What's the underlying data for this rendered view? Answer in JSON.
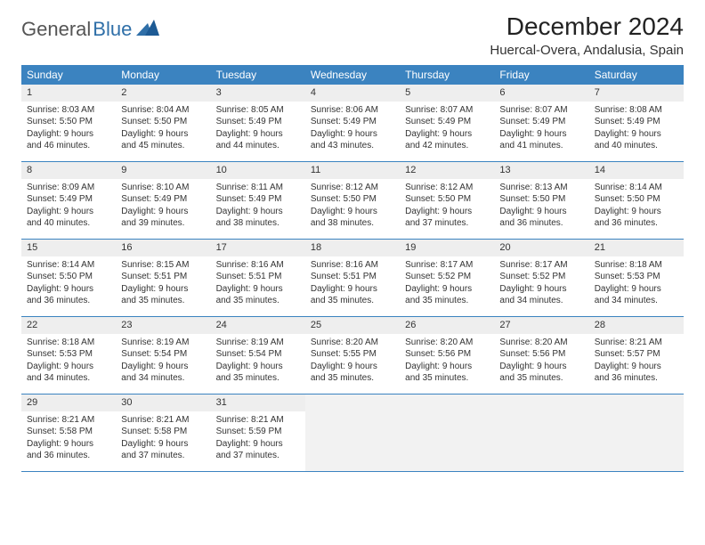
{
  "logo": {
    "text1": "General",
    "text2": "Blue"
  },
  "title": "December 2024",
  "location": "Huercal-Overa, Andalusia, Spain",
  "colors": {
    "header_bg": "#3b83c0",
    "header_text": "#ffffff",
    "daynum_bg": "#eeeeee",
    "border": "#3b83c0",
    "logo_gray": "#555555",
    "logo_blue": "#2f6fa8"
  },
  "day_labels": [
    "Sunday",
    "Monday",
    "Tuesday",
    "Wednesday",
    "Thursday",
    "Friday",
    "Saturday"
  ],
  "weeks": [
    [
      {
        "n": "1",
        "sr": "Sunrise: 8:03 AM",
        "ss": "Sunset: 5:50 PM",
        "d1": "Daylight: 9 hours",
        "d2": "and 46 minutes."
      },
      {
        "n": "2",
        "sr": "Sunrise: 8:04 AM",
        "ss": "Sunset: 5:50 PM",
        "d1": "Daylight: 9 hours",
        "d2": "and 45 minutes."
      },
      {
        "n": "3",
        "sr": "Sunrise: 8:05 AM",
        "ss": "Sunset: 5:49 PM",
        "d1": "Daylight: 9 hours",
        "d2": "and 44 minutes."
      },
      {
        "n": "4",
        "sr": "Sunrise: 8:06 AM",
        "ss": "Sunset: 5:49 PM",
        "d1": "Daylight: 9 hours",
        "d2": "and 43 minutes."
      },
      {
        "n": "5",
        "sr": "Sunrise: 8:07 AM",
        "ss": "Sunset: 5:49 PM",
        "d1": "Daylight: 9 hours",
        "d2": "and 42 minutes."
      },
      {
        "n": "6",
        "sr": "Sunrise: 8:07 AM",
        "ss": "Sunset: 5:49 PM",
        "d1": "Daylight: 9 hours",
        "d2": "and 41 minutes."
      },
      {
        "n": "7",
        "sr": "Sunrise: 8:08 AM",
        "ss": "Sunset: 5:49 PM",
        "d1": "Daylight: 9 hours",
        "d2": "and 40 minutes."
      }
    ],
    [
      {
        "n": "8",
        "sr": "Sunrise: 8:09 AM",
        "ss": "Sunset: 5:49 PM",
        "d1": "Daylight: 9 hours",
        "d2": "and 40 minutes."
      },
      {
        "n": "9",
        "sr": "Sunrise: 8:10 AM",
        "ss": "Sunset: 5:49 PM",
        "d1": "Daylight: 9 hours",
        "d2": "and 39 minutes."
      },
      {
        "n": "10",
        "sr": "Sunrise: 8:11 AM",
        "ss": "Sunset: 5:49 PM",
        "d1": "Daylight: 9 hours",
        "d2": "and 38 minutes."
      },
      {
        "n": "11",
        "sr": "Sunrise: 8:12 AM",
        "ss": "Sunset: 5:50 PM",
        "d1": "Daylight: 9 hours",
        "d2": "and 38 minutes."
      },
      {
        "n": "12",
        "sr": "Sunrise: 8:12 AM",
        "ss": "Sunset: 5:50 PM",
        "d1": "Daylight: 9 hours",
        "d2": "and 37 minutes."
      },
      {
        "n": "13",
        "sr": "Sunrise: 8:13 AM",
        "ss": "Sunset: 5:50 PM",
        "d1": "Daylight: 9 hours",
        "d2": "and 36 minutes."
      },
      {
        "n": "14",
        "sr": "Sunrise: 8:14 AM",
        "ss": "Sunset: 5:50 PM",
        "d1": "Daylight: 9 hours",
        "d2": "and 36 minutes."
      }
    ],
    [
      {
        "n": "15",
        "sr": "Sunrise: 8:14 AM",
        "ss": "Sunset: 5:50 PM",
        "d1": "Daylight: 9 hours",
        "d2": "and 36 minutes."
      },
      {
        "n": "16",
        "sr": "Sunrise: 8:15 AM",
        "ss": "Sunset: 5:51 PM",
        "d1": "Daylight: 9 hours",
        "d2": "and 35 minutes."
      },
      {
        "n": "17",
        "sr": "Sunrise: 8:16 AM",
        "ss": "Sunset: 5:51 PM",
        "d1": "Daylight: 9 hours",
        "d2": "and 35 minutes."
      },
      {
        "n": "18",
        "sr": "Sunrise: 8:16 AM",
        "ss": "Sunset: 5:51 PM",
        "d1": "Daylight: 9 hours",
        "d2": "and 35 minutes."
      },
      {
        "n": "19",
        "sr": "Sunrise: 8:17 AM",
        "ss": "Sunset: 5:52 PM",
        "d1": "Daylight: 9 hours",
        "d2": "and 35 minutes."
      },
      {
        "n": "20",
        "sr": "Sunrise: 8:17 AM",
        "ss": "Sunset: 5:52 PM",
        "d1": "Daylight: 9 hours",
        "d2": "and 34 minutes."
      },
      {
        "n": "21",
        "sr": "Sunrise: 8:18 AM",
        "ss": "Sunset: 5:53 PM",
        "d1": "Daylight: 9 hours",
        "d2": "and 34 minutes."
      }
    ],
    [
      {
        "n": "22",
        "sr": "Sunrise: 8:18 AM",
        "ss": "Sunset: 5:53 PM",
        "d1": "Daylight: 9 hours",
        "d2": "and 34 minutes."
      },
      {
        "n": "23",
        "sr": "Sunrise: 8:19 AM",
        "ss": "Sunset: 5:54 PM",
        "d1": "Daylight: 9 hours",
        "d2": "and 34 minutes."
      },
      {
        "n": "24",
        "sr": "Sunrise: 8:19 AM",
        "ss": "Sunset: 5:54 PM",
        "d1": "Daylight: 9 hours",
        "d2": "and 35 minutes."
      },
      {
        "n": "25",
        "sr": "Sunrise: 8:20 AM",
        "ss": "Sunset: 5:55 PM",
        "d1": "Daylight: 9 hours",
        "d2": "and 35 minutes."
      },
      {
        "n": "26",
        "sr": "Sunrise: 8:20 AM",
        "ss": "Sunset: 5:56 PM",
        "d1": "Daylight: 9 hours",
        "d2": "and 35 minutes."
      },
      {
        "n": "27",
        "sr": "Sunrise: 8:20 AM",
        "ss": "Sunset: 5:56 PM",
        "d1": "Daylight: 9 hours",
        "d2": "and 35 minutes."
      },
      {
        "n": "28",
        "sr": "Sunrise: 8:21 AM",
        "ss": "Sunset: 5:57 PM",
        "d1": "Daylight: 9 hours",
        "d2": "and 36 minutes."
      }
    ],
    [
      {
        "n": "29",
        "sr": "Sunrise: 8:21 AM",
        "ss": "Sunset: 5:58 PM",
        "d1": "Daylight: 9 hours",
        "d2": "and 36 minutes."
      },
      {
        "n": "30",
        "sr": "Sunrise: 8:21 AM",
        "ss": "Sunset: 5:58 PM",
        "d1": "Daylight: 9 hours",
        "d2": "and 37 minutes."
      },
      {
        "n": "31",
        "sr": "Sunrise: 8:21 AM",
        "ss": "Sunset: 5:59 PM",
        "d1": "Daylight: 9 hours",
        "d2": "and 37 minutes."
      },
      null,
      null,
      null,
      null
    ]
  ]
}
